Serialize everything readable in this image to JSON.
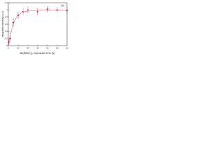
{
  "chart_data": {
    "type": "scatter",
    "panel_label": "(c)",
    "xlabel": "Sb(NMe₂)₃ exposure time (s)",
    "ylabel": "Integrated intensity (a.u.)",
    "xlim": [
      0,
      60
    ],
    "xticks": [
      0,
      10,
      20,
      30,
      40,
      50,
      60
    ],
    "ylim": [
      0,
      1.2
    ],
    "yticks": [
      0,
      0.2,
      0.4,
      0.6,
      0.8,
      1,
      1.2
    ],
    "series": [
      {
        "color": "#c0306a",
        "x": [
          0.5,
          2,
          5,
          10,
          15,
          20,
          30,
          40,
          50,
          60
        ],
        "values": [
          0.1,
          0.2,
          0.65,
          0.85,
          0.95,
          1.0,
          0.95,
          1.02,
          1.0,
          0.98
        ],
        "errors": [
          0.08,
          0.1,
          0.12,
          0.1,
          0.1,
          0.1,
          0.1,
          0.08,
          0.08,
          0.1
        ]
      }
    ],
    "fit": {
      "color": "#e06070",
      "x": [
        0,
        2,
        4,
        6,
        8,
        10,
        14,
        18,
        24,
        30,
        40,
        50,
        60
      ],
      "values": [
        0.02,
        0.3,
        0.52,
        0.67,
        0.78,
        0.85,
        0.93,
        0.96,
        0.98,
        0.99,
        0.99,
        0.99,
        0.99
      ]
    }
  }
}
